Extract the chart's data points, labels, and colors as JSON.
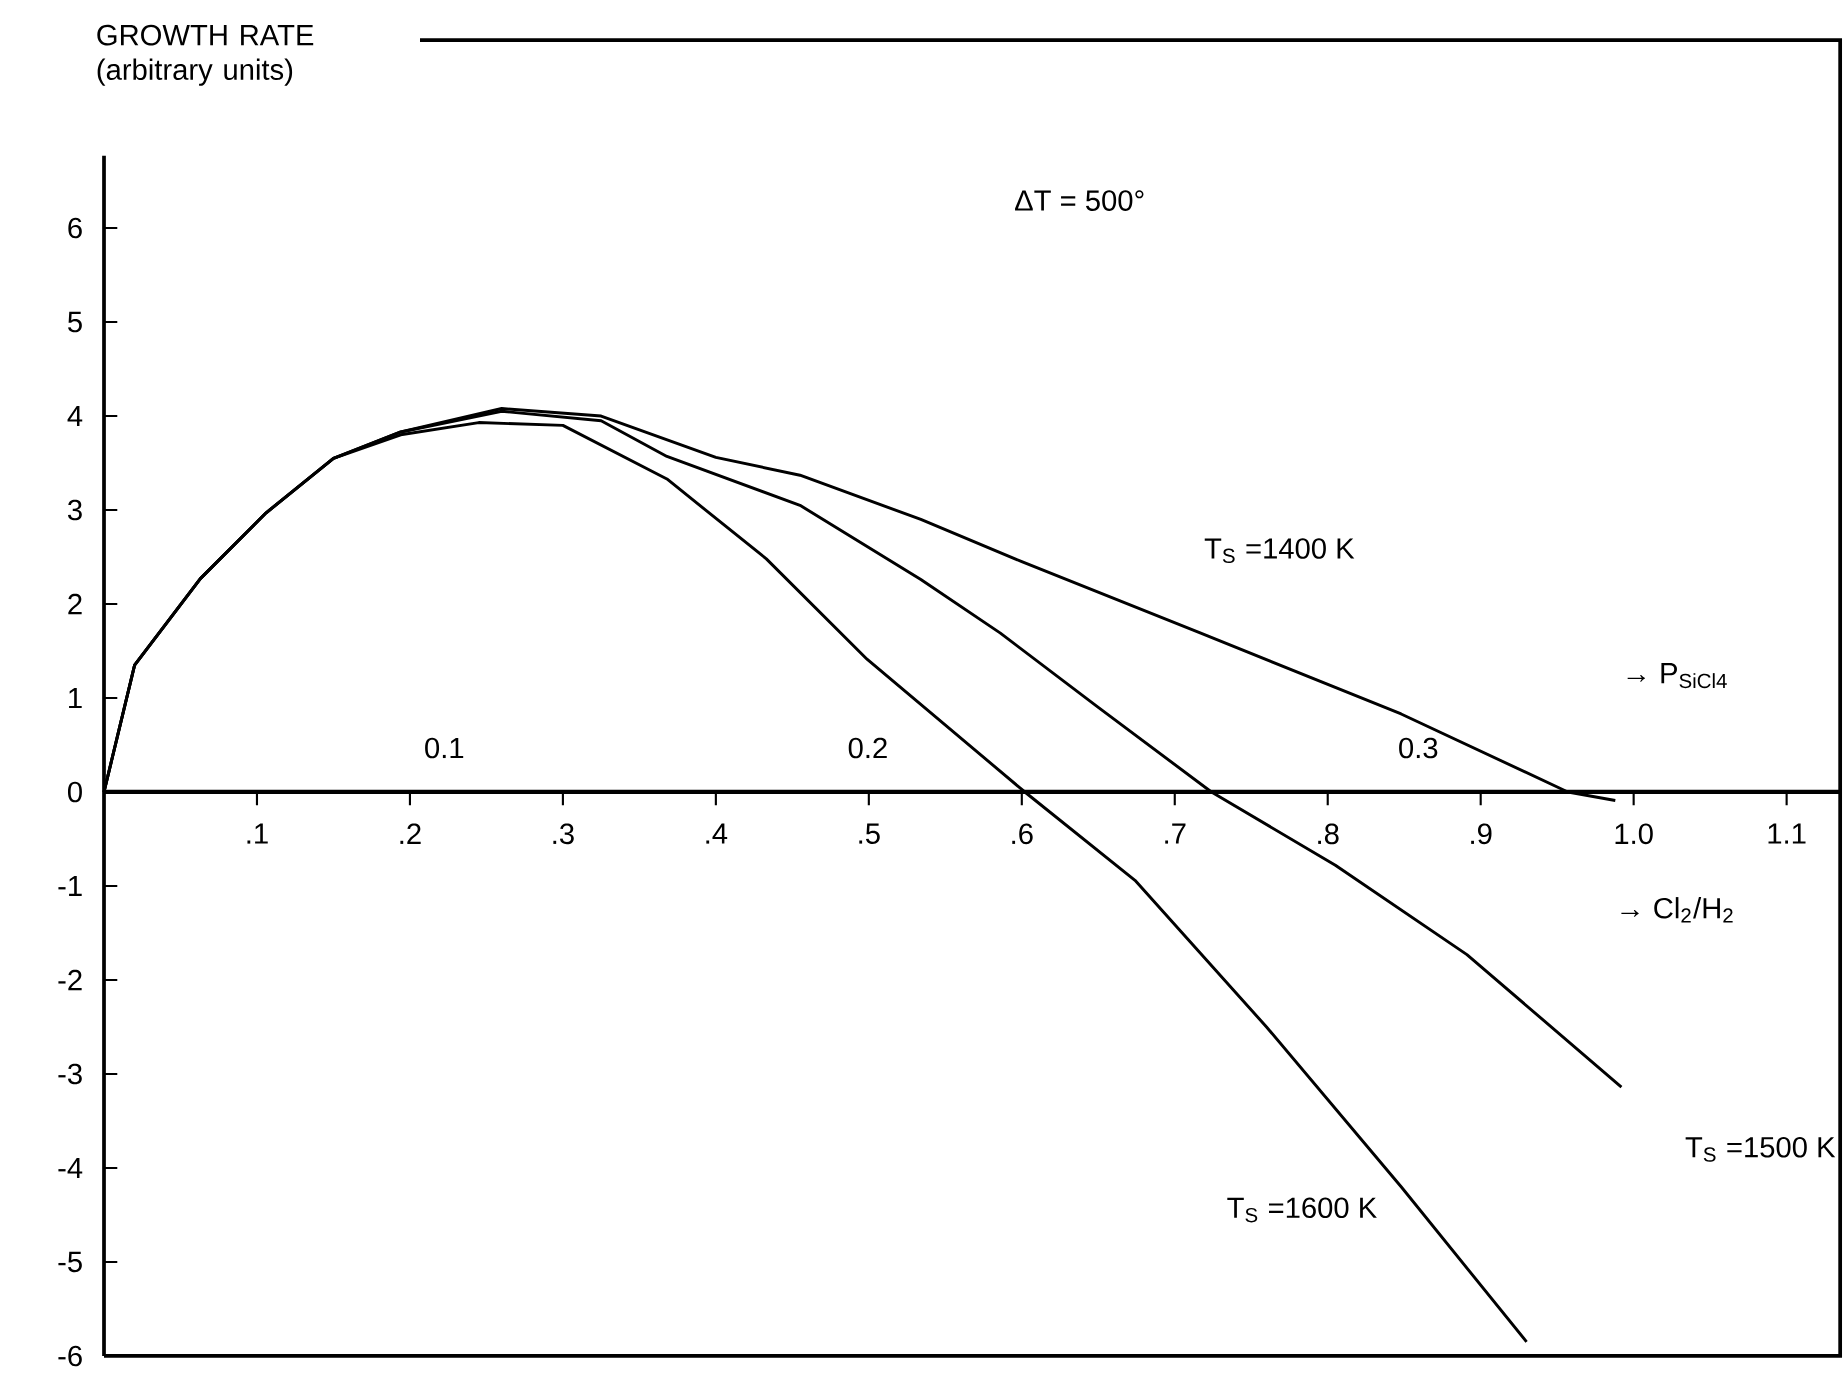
{
  "chart_data": {
    "type": "line",
    "ylabel": "GROWTH RATE (arbitrary units)",
    "xlabel": "→ Cl$_{2}$/H$_{2}$",
    "x2label": "→ P$_{SiCl4}$",
    "annotations": [
      "ΔT = 500°",
      "0.1",
      "0.2",
      "0.3"
    ],
    "xlim": [
      0,
      1.135
    ],
    "ylim": [
      -6,
      8
    ],
    "xticks": [
      {
        "value": 0.1,
        "label": ".1"
      },
      {
        "value": 0.2,
        "label": ".2"
      },
      {
        "value": 0.3,
        "label": ".3"
      },
      {
        "value": 0.4,
        "label": ".4"
      },
      {
        "value": 0.5,
        "label": ".5"
      },
      {
        "value": 0.6,
        "label": ".6"
      },
      {
        "value": 0.7,
        "label": ".7"
      },
      {
        "value": 0.8,
        "label": ".8"
      },
      {
        "value": 0.9,
        "label": ".9"
      },
      {
        "value": 1.0,
        "label": "1.0"
      },
      {
        "value": 1.1,
        "label": "1.1"
      }
    ],
    "yticks": [
      -6,
      -5,
      -4,
      -3,
      -2,
      -1,
      0,
      1,
      2,
      3,
      4,
      5,
      6
    ],
    "series": [
      {
        "name": "T$_{S}$ =1400 K",
        "color": "#000000",
        "x": [
          0,
          0.02,
          0.063,
          0.106,
          0.15,
          0.194,
          0.26,
          0.325,
          0.4,
          0.455,
          0.534,
          0.6,
          0.717,
          0.848,
          0.957,
          0.988
        ],
        "values": [
          0,
          1.35,
          2.27,
          2.97,
          3.55,
          3.83,
          4.08,
          4.0,
          3.56,
          3.37,
          2.9,
          2.45,
          1.69,
          0.83,
          0,
          -0.09
        ]
      },
      {
        "name": "T$_{S}$ =1500 K",
        "color": "#000000",
        "x": [
          0,
          0.02,
          0.063,
          0.106,
          0.15,
          0.194,
          0.26,
          0.325,
          0.368,
          0.455,
          0.534,
          0.586,
          0.65,
          0.724,
          0.805,
          0.891,
          0.992
        ],
        "values": [
          0,
          1.35,
          2.27,
          2.97,
          3.55,
          3.83,
          4.05,
          3.95,
          3.57,
          3.05,
          2.26,
          1.69,
          0.9,
          0,
          -0.78,
          -1.73,
          -3.14
        ]
      },
      {
        "name": "T$_{S}$ =1600 K",
        "color": "#000000",
        "x": [
          0,
          0.02,
          0.063,
          0.106,
          0.15,
          0.194,
          0.245,
          0.3,
          0.368,
          0.433,
          0.499,
          0.602,
          0.674,
          0.76,
          0.848,
          0.93
        ],
        "values": [
          0,
          1.35,
          2.27,
          2.97,
          3.55,
          3.8,
          3.93,
          3.9,
          3.33,
          2.48,
          1.41,
          0,
          -0.94,
          -2.5,
          -4.2,
          -5.85
        ]
      }
    ]
  }
}
